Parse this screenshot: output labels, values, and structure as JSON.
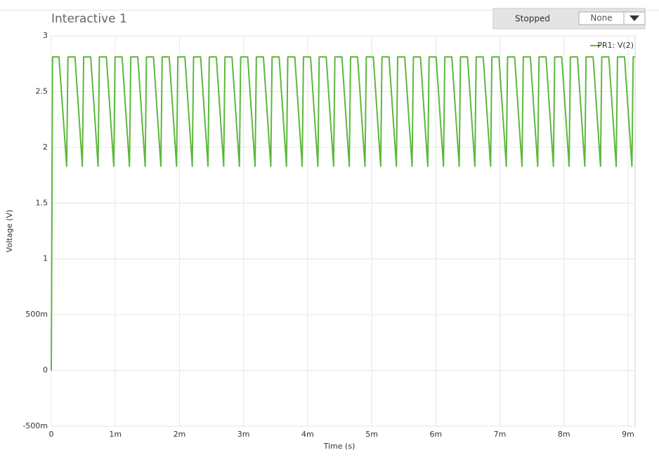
{
  "header": {
    "title": "Interactive 1",
    "status": "Stopped",
    "select": "None"
  },
  "chart_data": {
    "type": "line",
    "xlabel": "Time (s)",
    "ylabel": "Voltage (V)",
    "x": [
      0,
      2e-05,
      0.00012,
      0.00024,
      0.00026,
      0.00037,
      0.000485,
      0.000505,
      0.000615,
      0.00073,
      0.00075,
      0.00086,
      0.000975,
      0.000995,
      0.001105,
      0.00122,
      0.00124,
      0.00135,
      0.001465,
      0.001485,
      0.001595,
      0.00171,
      0.00173,
      0.00184,
      0.001955,
      0.001975,
      0.002085,
      0.0022,
      0.00222,
      0.00233,
      0.002445,
      0.002465,
      0.002575,
      0.00269,
      0.00271,
      0.00282,
      0.002935,
      0.002955,
      0.003065,
      0.00318,
      0.0032,
      0.00331,
      0.003425,
      0.003445,
      0.003555,
      0.00367,
      0.00369,
      0.0038,
      0.003915,
      0.003935,
      0.004045,
      0.00416,
      0.00418,
      0.00429,
      0.004405,
      0.004425,
      0.004535,
      0.00465,
      0.00467,
      0.00478,
      0.004895,
      0.004915,
      0.005025,
      0.00514,
      0.00516,
      0.00527,
      0.005385,
      0.005405,
      0.005515,
      0.00563,
      0.00565,
      0.00576,
      0.005875,
      0.005895,
      0.006005,
      0.00612,
      0.00614,
      0.00625,
      0.006365,
      0.006385,
      0.006495,
      0.00661,
      0.00663,
      0.00674,
      0.006855,
      0.006875,
      0.006985,
      0.0071,
      0.00712,
      0.00723,
      0.007345,
      0.007365,
      0.007475,
      0.00759,
      0.00761,
      0.00772,
      0.007835,
      0.007855,
      0.007965,
      0.00808,
      0.0081,
      0.00821,
      0.008325,
      0.008345,
      0.008455,
      0.00857,
      0.00859,
      0.0087,
      0.008815,
      0.008835,
      0.008945,
      0.00906,
      0.00908,
      0.00911
    ],
    "series": [
      {
        "name": "PR1: V(2)",
        "color": "#5cb83c",
        "values": [
          0,
          2.81,
          2.81,
          1.83,
          2.81,
          2.81,
          1.83,
          2.81,
          2.81,
          1.83,
          2.81,
          2.81,
          1.83,
          2.81,
          2.81,
          1.83,
          2.81,
          2.81,
          1.83,
          2.81,
          2.81,
          1.83,
          2.81,
          2.81,
          1.83,
          2.81,
          2.81,
          1.83,
          2.81,
          2.81,
          1.83,
          2.81,
          2.81,
          1.83,
          2.81,
          2.81,
          1.83,
          2.81,
          2.81,
          1.83,
          2.81,
          2.81,
          1.83,
          2.81,
          2.81,
          1.83,
          2.81,
          2.81,
          1.83,
          2.81,
          2.81,
          1.83,
          2.81,
          2.81,
          1.83,
          2.81,
          2.81,
          1.83,
          2.81,
          2.81,
          1.83,
          2.81,
          2.81,
          1.83,
          2.81,
          2.81,
          1.83,
          2.81,
          2.81,
          1.83,
          2.81,
          2.81,
          1.83,
          2.81,
          2.81,
          1.83,
          2.81,
          2.81,
          1.83,
          2.81,
          2.81,
          1.83,
          2.81,
          2.81,
          1.83,
          2.81,
          2.81,
          1.83,
          2.81,
          2.81,
          1.83,
          2.81,
          2.81,
          1.83,
          2.81,
          2.81,
          1.83,
          2.81,
          2.81,
          1.83,
          2.81,
          2.81,
          1.83,
          2.81,
          2.81,
          1.83,
          2.81,
          2.81,
          1.83,
          2.81,
          2.81,
          1.83,
          2.81,
          2.81
        ]
      }
    ],
    "xlim": [
      0,
      0.00911
    ],
    "xticks": [
      0,
      {
        "value": 0.001,
        "label": "1m"
      },
      {
        "value": 0.002,
        "label": "2m"
      },
      {
        "value": 0.003,
        "label": "3m"
      },
      {
        "value": 0.004,
        "label": "4m"
      },
      {
        "value": 0.005,
        "label": "5m"
      },
      {
        "value": 0.006,
        "label": "6m"
      },
      {
        "value": 0.007,
        "label": "7m"
      },
      {
        "value": 0.008,
        "label": "8m"
      },
      {
        "value": 0.009,
        "label": "9m"
      }
    ],
    "ylim": [
      -0.5,
      3
    ],
    "yticks": [
      {
        "value": -0.5,
        "label": "-500m"
      },
      0,
      {
        "value": 0.5,
        "label": "500m"
      },
      1,
      1.5,
      2,
      2.5,
      3
    ],
    "grid": true,
    "legend": "upper right"
  }
}
